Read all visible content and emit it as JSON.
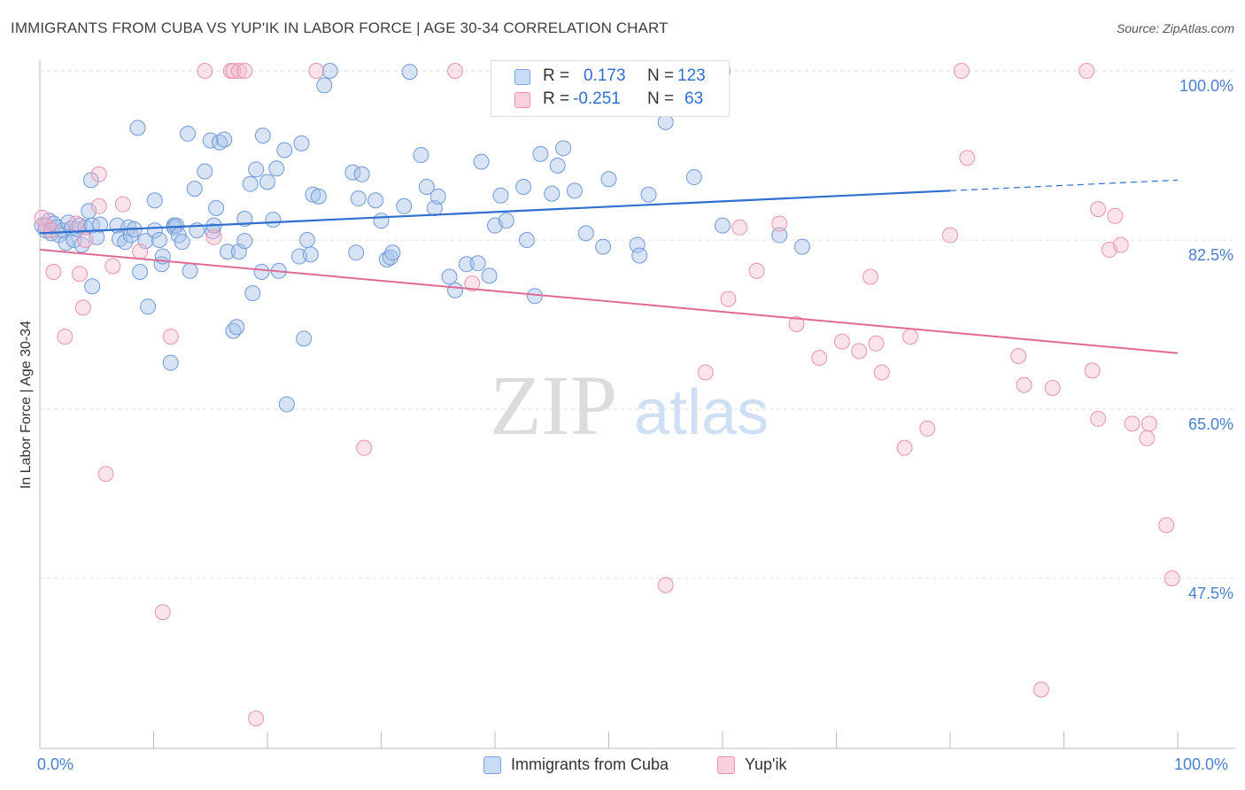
{
  "title": "IMMIGRANTS FROM CUBA VS YUP'IK IN LABOR FORCE | AGE 30-34 CORRELATION CHART",
  "source": "Source: ZipAtlas.com",
  "colors": {
    "blue": "#a8c4ec",
    "blue_line": "#2f6fcf",
    "pink": "#f4b8cc",
    "pink_line": "#e06a96",
    "axis_text": "#4a7fcf"
  },
  "legend": {
    "rows": [
      {
        "r_label": "R =",
        "r_value": "0.173",
        "n_label": "N =",
        "n_value": "123"
      },
      {
        "r_label": "R =",
        "r_value": "-0.251",
        "n_label": "N =",
        "n_value": "63"
      }
    ]
  },
  "bottom_legend": [
    "Immigrants from Cuba",
    "Yup'ik"
  ],
  "x_labels": {
    "left": "0.0%",
    "right": "100.0%"
  },
  "watermark": {
    "zip": "ZIP",
    "atlas": "atlas"
  },
  "chart_data": {
    "type": "scatter",
    "xlabel": "",
    "ylabel": "In Labor Force | Age 30-34",
    "xlim": [
      0,
      100
    ],
    "ylim": [
      30,
      100
    ],
    "y_ticks": [
      {
        "value": 100.0,
        "label": "100.0%"
      },
      {
        "value": 82.5,
        "label": "82.5%"
      },
      {
        "value": 65.0,
        "label": "65.0%"
      },
      {
        "value": 47.5,
        "label": "47.5%"
      }
    ],
    "grid": true,
    "legend_position": "top-center",
    "series": [
      {
        "name": "Immigrants from Cuba",
        "color": "#a8c4ec",
        "trend": {
          "x0": 0,
          "y0": 83.2,
          "x1": 80,
          "y1": 87.6,
          "dash_to_x": 100,
          "dash_to_y": 88.7
        },
        "points": [
          [
            0.2,
            84.0
          ],
          [
            0.5,
            83.5
          ],
          [
            0.8,
            84.5
          ],
          [
            1.0,
            83.2
          ],
          [
            1.2,
            84.2
          ],
          [
            1.5,
            83.8
          ],
          [
            1.7,
            83.0
          ],
          [
            2.0,
            83.5
          ],
          [
            2.3,
            82.2
          ],
          [
            2.5,
            84.3
          ],
          [
            2.8,
            83.7
          ],
          [
            3.0,
            82.5
          ],
          [
            3.3,
            83.6
          ],
          [
            3.5,
            84.0
          ],
          [
            3.7,
            82.0
          ],
          [
            4.0,
            83.8
          ],
          [
            4.3,
            85.5
          ],
          [
            4.6,
            84.0
          ],
          [
            5.0,
            82.8
          ],
          [
            5.3,
            84.1
          ],
          [
            4.5,
            88.7
          ],
          [
            4.6,
            77.7
          ],
          [
            6.8,
            84.0
          ],
          [
            7.0,
            82.6
          ],
          [
            7.5,
            82.3
          ],
          [
            7.8,
            83.8
          ],
          [
            8.0,
            83.0
          ],
          [
            8.3,
            83.6
          ],
          [
            8.6,
            94.1
          ],
          [
            8.8,
            79.2
          ],
          [
            9.3,
            82.4
          ],
          [
            9.5,
            75.6
          ],
          [
            10.1,
            86.6
          ],
          [
            10.1,
            83.5
          ],
          [
            10.5,
            82.5
          ],
          [
            10.7,
            80.0
          ],
          [
            10.8,
            80.8
          ],
          [
            11.5,
            69.8
          ],
          [
            11.8,
            84.0
          ],
          [
            11.8,
            83.8
          ],
          [
            12.0,
            84.0
          ],
          [
            12.2,
            83.0
          ],
          [
            12.5,
            82.3
          ],
          [
            13.0,
            93.5
          ],
          [
            13.2,
            79.3
          ],
          [
            13.6,
            87.8
          ],
          [
            13.8,
            83.5
          ],
          [
            14.5,
            89.6
          ],
          [
            15.0,
            92.8
          ],
          [
            15.2,
            83.4
          ],
          [
            15.3,
            84.0
          ],
          [
            15.5,
            85.8
          ],
          [
            15.8,
            92.6
          ],
          [
            16.2,
            92.9
          ],
          [
            16.5,
            81.3
          ],
          [
            17.0,
            73.1
          ],
          [
            17.3,
            73.5
          ],
          [
            17.5,
            81.3
          ],
          [
            18.0,
            84.7
          ],
          [
            18.0,
            82.4
          ],
          [
            18.5,
            88.3
          ],
          [
            18.7,
            77.0
          ],
          [
            19.0,
            89.8
          ],
          [
            19.5,
            79.2
          ],
          [
            19.6,
            93.3
          ],
          [
            20.0,
            88.5
          ],
          [
            20.5,
            84.6
          ],
          [
            20.8,
            89.9
          ],
          [
            21.0,
            79.3
          ],
          [
            21.5,
            91.8
          ],
          [
            21.7,
            65.5
          ],
          [
            22.8,
            80.8
          ],
          [
            23.0,
            92.5
          ],
          [
            23.2,
            72.3
          ],
          [
            23.5,
            82.5
          ],
          [
            23.8,
            81.0
          ],
          [
            24.0,
            87.2
          ],
          [
            24.5,
            87.0
          ],
          [
            25.0,
            98.5
          ],
          [
            25.5,
            100.0
          ],
          [
            27.5,
            89.5
          ],
          [
            27.8,
            81.2
          ],
          [
            28.0,
            86.8
          ],
          [
            28.3,
            89.3
          ],
          [
            29.5,
            86.6
          ],
          [
            30.0,
            84.5
          ],
          [
            30.5,
            80.5
          ],
          [
            30.8,
            80.7
          ],
          [
            31.0,
            81.2
          ],
          [
            32.0,
            86.0
          ],
          [
            32.5,
            99.9
          ],
          [
            33.5,
            91.3
          ],
          [
            34.0,
            88.0
          ],
          [
            34.7,
            85.8
          ],
          [
            35.0,
            87.0
          ],
          [
            36.0,
            78.7
          ],
          [
            36.5,
            77.3
          ],
          [
            37.5,
            80.0
          ],
          [
            38.5,
            80.1
          ],
          [
            38.8,
            90.6
          ],
          [
            39.5,
            78.8
          ],
          [
            40.0,
            84.0
          ],
          [
            40.5,
            87.1
          ],
          [
            41.0,
            84.5
          ],
          [
            42.5,
            88.0
          ],
          [
            42.8,
            82.5
          ],
          [
            43.5,
            76.7
          ],
          [
            44.0,
            91.4
          ],
          [
            45.0,
            87.3
          ],
          [
            45.5,
            90.2
          ],
          [
            46.0,
            92.0
          ],
          [
            47.0,
            87.6
          ],
          [
            48.0,
            83.2
          ],
          [
            49.5,
            81.8
          ],
          [
            50.0,
            88.8
          ],
          [
            52.5,
            82.0
          ],
          [
            52.7,
            80.9
          ],
          [
            53.5,
            87.2
          ],
          [
            55.0,
            94.7
          ],
          [
            57.5,
            89.0
          ],
          [
            60.0,
            84.0
          ],
          [
            65.0,
            83.0
          ],
          [
            67.0,
            81.8
          ],
          [
            60.0,
            99.9
          ]
        ]
      },
      {
        "name": "Yup'ik",
        "color": "#f4b8cc",
        "trend": {
          "x0": 0,
          "y0": 81.5,
          "x1": 100,
          "y1": 70.8
        },
        "points": [
          [
            0.2,
            84.8
          ],
          [
            0.5,
            84.0
          ],
          [
            1.0,
            83.5
          ],
          [
            1.2,
            79.2
          ],
          [
            2.2,
            72.5
          ],
          [
            3.2,
            84.2
          ],
          [
            3.5,
            79.0
          ],
          [
            3.8,
            75.5
          ],
          [
            4.0,
            82.5
          ],
          [
            5.2,
            89.3
          ],
          [
            5.2,
            86.0
          ],
          [
            5.8,
            58.3
          ],
          [
            6.4,
            79.8
          ],
          [
            7.3,
            86.2
          ],
          [
            8.8,
            81.3
          ],
          [
            10.8,
            44.0
          ],
          [
            11.5,
            72.5
          ],
          [
            14.5,
            100.0
          ],
          [
            15.3,
            82.8
          ],
          [
            16.8,
            100.0
          ],
          [
            17.0,
            100.0
          ],
          [
            17.5,
            100.0
          ],
          [
            18.0,
            100.0
          ],
          [
            19.0,
            33.0
          ],
          [
            24.3,
            100.0
          ],
          [
            28.5,
            61.0
          ],
          [
            36.5,
            100.0
          ],
          [
            38.0,
            78.0
          ],
          [
            50.0,
            100.0
          ],
          [
            55.0,
            46.8
          ],
          [
            60.0,
            100.0
          ],
          [
            58.5,
            68.8
          ],
          [
            60.5,
            76.4
          ],
          [
            61.5,
            83.8
          ],
          [
            63.0,
            79.3
          ],
          [
            65.0,
            84.2
          ],
          [
            66.5,
            73.8
          ],
          [
            68.5,
            70.3
          ],
          [
            70.5,
            72.0
          ],
          [
            72.0,
            71.0
          ],
          [
            73.0,
            78.7
          ],
          [
            73.5,
            71.8
          ],
          [
            74.0,
            68.8
          ],
          [
            76.0,
            61.0
          ],
          [
            76.5,
            72.5
          ],
          [
            78.0,
            63.0
          ],
          [
            80.0,
            83.0
          ],
          [
            81.0,
            100.0
          ],
          [
            81.5,
            91.0
          ],
          [
            86.0,
            70.5
          ],
          [
            86.5,
            67.5
          ],
          [
            88.0,
            36.0
          ],
          [
            89.0,
            67.2
          ],
          [
            92.0,
            100.0
          ],
          [
            92.5,
            69.0
          ],
          [
            93.0,
            85.7
          ],
          [
            93.0,
            64.0
          ],
          [
            94.0,
            81.5
          ],
          [
            94.5,
            85.0
          ],
          [
            95.0,
            82.0
          ],
          [
            96.0,
            63.5
          ],
          [
            97.3,
            62.0
          ],
          [
            97.5,
            63.5
          ],
          [
            99.0,
            53.0
          ],
          [
            99.5,
            47.5
          ]
        ]
      }
    ]
  }
}
